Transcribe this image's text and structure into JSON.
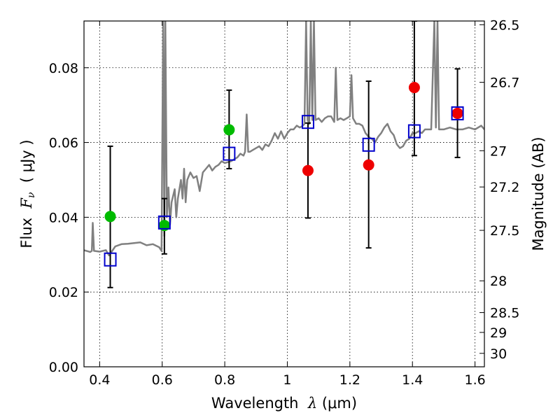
{
  "chart_data": {
    "type": "scatter",
    "title": "",
    "xlabel": {
      "prefix": "Wavelength  ",
      "symbol": "λ",
      "unit": " (μm)"
    },
    "ylabel": {
      "prefix": "Flux  ",
      "symbol": "F",
      "sub": "ν",
      "unit": "  ( μJy )"
    },
    "y2label": "Magnitude (AB)",
    "xlim": [
      0.35,
      1.63
    ],
    "ylim": [
      0.0,
      0.0925
    ],
    "grid": true,
    "x_ticks": [
      0.4,
      0.6,
      0.8,
      1.0,
      1.2,
      1.4,
      1.6
    ],
    "x_tick_labels": [
      "0.4",
      "0.6",
      "0.8",
      "1",
      "1.2",
      "1.4",
      "1.6"
    ],
    "y_ticks": [
      0.0,
      0.02,
      0.04,
      0.06,
      0.08
    ],
    "y_tick_labels": [
      "0.00",
      "0.02",
      "0.04",
      "0.06",
      "0.08"
    ],
    "y2_ticks": [
      {
        "label": "26.5",
        "flux": 0.0915
      },
      {
        "label": "26.7",
        "flux": 0.0761
      },
      {
        "label": "27",
        "flux": 0.0578
      },
      {
        "label": "27.2",
        "flux": 0.0481
      },
      {
        "label": "27.5",
        "flux": 0.0365
      },
      {
        "label": "28",
        "flux": 0.023
      },
      {
        "label": "28.5",
        "flux": 0.0145
      },
      {
        "label": "29",
        "flux": 0.0092
      },
      {
        "label": "30",
        "flux": 0.0036
      }
    ],
    "colors": {
      "spectrum": "#808080",
      "model_points": "#0000cc",
      "green_points": "#00bb00",
      "red_points": "#ee0000",
      "errorbars": "#000000"
    },
    "spectrum": [
      [
        0.35,
        0.0312
      ],
      [
        0.37,
        0.0307
      ],
      [
        0.375,
        0.031
      ],
      [
        0.378,
        0.0385
      ],
      [
        0.382,
        0.031
      ],
      [
        0.4,
        0.0308
      ],
      [
        0.42,
        0.0312
      ],
      [
        0.43,
        0.0298
      ],
      [
        0.45,
        0.0322
      ],
      [
        0.47,
        0.0328
      ],
      [
        0.49,
        0.0329
      ],
      [
        0.51,
        0.0331
      ],
      [
        0.53,
        0.0333
      ],
      [
        0.55,
        0.0325
      ],
      [
        0.57,
        0.0328
      ],
      [
        0.59,
        0.032
      ],
      [
        0.598,
        0.031
      ],
      [
        0.603,
        0.0925
      ],
      [
        0.607,
        0.035
      ],
      [
        0.61,
        0.0925
      ],
      [
        0.615,
        0.04
      ],
      [
        0.62,
        0.048
      ],
      [
        0.625,
        0.038
      ],
      [
        0.63,
        0.044
      ],
      [
        0.64,
        0.0475
      ],
      [
        0.645,
        0.04
      ],
      [
        0.65,
        0.045
      ],
      [
        0.66,
        0.05
      ],
      [
        0.665,
        0.045
      ],
      [
        0.67,
        0.053
      ],
      [
        0.675,
        0.044
      ],
      [
        0.68,
        0.05
      ],
      [
        0.69,
        0.052
      ],
      [
        0.7,
        0.0505
      ],
      [
        0.71,
        0.051
      ],
      [
        0.72,
        0.047
      ],
      [
        0.73,
        0.052
      ],
      [
        0.74,
        0.053
      ],
      [
        0.75,
        0.054
      ],
      [
        0.76,
        0.0525
      ],
      [
        0.77,
        0.0535
      ],
      [
        0.78,
        0.054
      ],
      [
        0.79,
        0.055
      ],
      [
        0.8,
        0.0545
      ],
      [
        0.82,
        0.055
      ],
      [
        0.83,
        0.0555
      ],
      [
        0.84,
        0.056
      ],
      [
        0.85,
        0.057
      ],
      [
        0.86,
        0.0565
      ],
      [
        0.865,
        0.0575
      ],
      [
        0.87,
        0.0675
      ],
      [
        0.875,
        0.0575
      ],
      [
        0.88,
        0.0575
      ],
      [
        0.89,
        0.058
      ],
      [
        0.9,
        0.0585
      ],
      [
        0.91,
        0.059
      ],
      [
        0.92,
        0.058
      ],
      [
        0.93,
        0.0595
      ],
      [
        0.94,
        0.059
      ],
      [
        0.95,
        0.0605
      ],
      [
        0.96,
        0.0625
      ],
      [
        0.97,
        0.061
      ],
      [
        0.98,
        0.063
      ],
      [
        0.99,
        0.061
      ],
      [
        1.0,
        0.0625
      ],
      [
        1.01,
        0.0635
      ],
      [
        1.02,
        0.0635
      ],
      [
        1.03,
        0.0645
      ],
      [
        1.04,
        0.064
      ],
      [
        1.05,
        0.0645
      ],
      [
        1.055,
        0.065
      ],
      [
        1.06,
        0.0925
      ],
      [
        1.065,
        0.066
      ],
      [
        1.07,
        0.065
      ],
      [
        1.075,
        0.0925
      ],
      [
        1.08,
        0.066
      ],
      [
        1.085,
        0.0925
      ],
      [
        1.09,
        0.066
      ],
      [
        1.1,
        0.0665
      ],
      [
        1.11,
        0.0655
      ],
      [
        1.12,
        0.0665
      ],
      [
        1.13,
        0.067
      ],
      [
        1.14,
        0.067
      ],
      [
        1.15,
        0.0655
      ],
      [
        1.155,
        0.08
      ],
      [
        1.16,
        0.066
      ],
      [
        1.17,
        0.0665
      ],
      [
        1.18,
        0.066
      ],
      [
        1.19,
        0.0665
      ],
      [
        1.2,
        0.067
      ],
      [
        1.205,
        0.078
      ],
      [
        1.21,
        0.0665
      ],
      [
        1.22,
        0.065
      ],
      [
        1.23,
        0.065
      ],
      [
        1.24,
        0.0645
      ],
      [
        1.25,
        0.0625
      ],
      [
        1.26,
        0.0615
      ],
      [
        1.27,
        0.061
      ],
      [
        1.28,
        0.06
      ],
      [
        1.29,
        0.0615
      ],
      [
        1.3,
        0.0625
      ],
      [
        1.31,
        0.064
      ],
      [
        1.32,
        0.065
      ],
      [
        1.33,
        0.063
      ],
      [
        1.34,
        0.062
      ],
      [
        1.35,
        0.0595
      ],
      [
        1.36,
        0.0585
      ],
      [
        1.37,
        0.059
      ],
      [
        1.38,
        0.0605
      ],
      [
        1.39,
        0.061
      ],
      [
        1.4,
        0.0625
      ],
      [
        1.41,
        0.0625
      ],
      [
        1.42,
        0.063
      ],
      [
        1.43,
        0.0625
      ],
      [
        1.44,
        0.0635
      ],
      [
        1.45,
        0.0635
      ],
      [
        1.46,
        0.0635
      ],
      [
        1.47,
        0.0925
      ],
      [
        1.475,
        0.064
      ],
      [
        1.48,
        0.0925
      ],
      [
        1.485,
        0.0635
      ],
      [
        1.5,
        0.0635
      ],
      [
        1.52,
        0.064
      ],
      [
        1.54,
        0.0635
      ],
      [
        1.56,
        0.0635
      ],
      [
        1.58,
        0.064
      ],
      [
        1.6,
        0.0635
      ],
      [
        1.62,
        0.0645
      ],
      [
        1.63,
        0.0635
      ]
    ],
    "model_points": [
      {
        "x": 0.434,
        "y": 0.0287
      },
      {
        "x": 0.607,
        "y": 0.0386
      },
      {
        "x": 0.814,
        "y": 0.057
      },
      {
        "x": 1.066,
        "y": 0.0655
      },
      {
        "x": 1.26,
        "y": 0.0594
      },
      {
        "x": 1.406,
        "y": 0.063
      },
      {
        "x": 1.544,
        "y": 0.0678
      }
    ],
    "green_points": [
      {
        "x": 0.434,
        "y": 0.0402,
        "yerr_low": 0.0212,
        "yerr_high": 0.059
      },
      {
        "x": 0.607,
        "y": 0.0378,
        "yerr_low": 0.0302,
        "yerr_high": 0.045
      },
      {
        "x": 0.814,
        "y": 0.0634,
        "yerr_low": 0.053,
        "yerr_high": 0.074
      }
    ],
    "red_points": [
      {
        "x": 1.066,
        "y": 0.0525,
        "yerr_low": 0.0398,
        "yerr_high": 0.0652
      },
      {
        "x": 1.26,
        "y": 0.054,
        "yerr_low": 0.0318,
        "yerr_high": 0.0764
      },
      {
        "x": 1.406,
        "y": 0.0747,
        "yerr_low": 0.0565,
        "yerr_high": 0.0925
      },
      {
        "x": 1.544,
        "y": 0.0678,
        "yerr_low": 0.056,
        "yerr_high": 0.0797
      }
    ]
  }
}
